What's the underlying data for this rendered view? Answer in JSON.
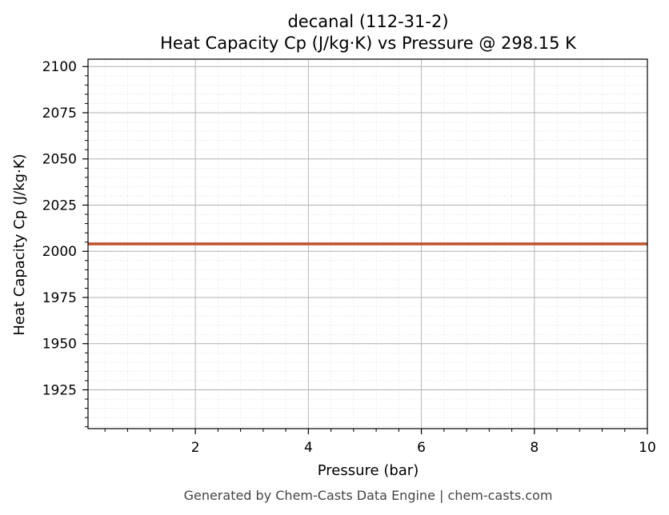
{
  "chart_data": {
    "type": "line",
    "title": "decanal (112-31-2)",
    "subtitle": "Heat Capacity Cp (J/kg·K) vs Pressure @ 298.15 K",
    "xlabel": "Pressure (bar)",
    "ylabel": "Heat Capacity Cp (J/kg·K)",
    "xlim": [
      0.1,
      10
    ],
    "ylim": [
      1904,
      2104
    ],
    "x_ticks": [
      2,
      4,
      6,
      8,
      10
    ],
    "y_ticks": [
      1925,
      1950,
      1975,
      2000,
      2025,
      2050,
      2075,
      2100
    ],
    "grid": true,
    "series": [
      {
        "color": "#c0522a",
        "x": [
          0.1,
          1,
          2,
          3,
          4,
          5,
          6,
          7,
          8,
          9,
          10
        ],
        "y": [
          2004,
          2004,
          2004,
          2004,
          2004,
          2004,
          2004,
          2004,
          2004,
          2004,
          2004
        ]
      }
    ]
  },
  "footer": "Generated by Chem-Casts Data Engine | chem-casts.com"
}
